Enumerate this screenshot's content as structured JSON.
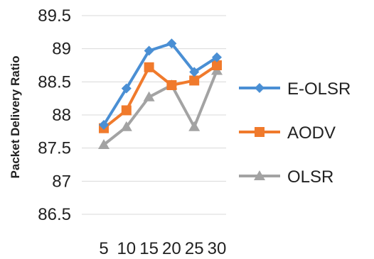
{
  "chart_data": {
    "type": "line",
    "title": "",
    "xlabel": "",
    "ylabel": "Packet Delivery Ratio",
    "categories": [
      "5",
      "10",
      "15",
      "20",
      "25",
      "30"
    ],
    "ylim": [
      86.5,
      89.5
    ],
    "yticks": [
      "89.5",
      "89",
      "88.5",
      "88",
      "87.5",
      "87",
      "86.5"
    ],
    "grid": true,
    "legend": "right",
    "series": [
      {
        "name": "E-OLSR",
        "color": "#4a8fd4",
        "marker": "diamond",
        "values": [
          87.85,
          88.4,
          88.97,
          89.08,
          88.65,
          88.87
        ]
      },
      {
        "name": "AODV",
        "color": "#f07a2c",
        "marker": "square",
        "values": [
          87.8,
          88.07,
          88.72,
          88.45,
          88.52,
          88.75
        ]
      },
      {
        "name": "OLSR",
        "color": "#a3a3a3",
        "marker": "triangle",
        "values": [
          87.55,
          87.82,
          88.27,
          88.45,
          87.82,
          88.67
        ]
      }
    ]
  }
}
